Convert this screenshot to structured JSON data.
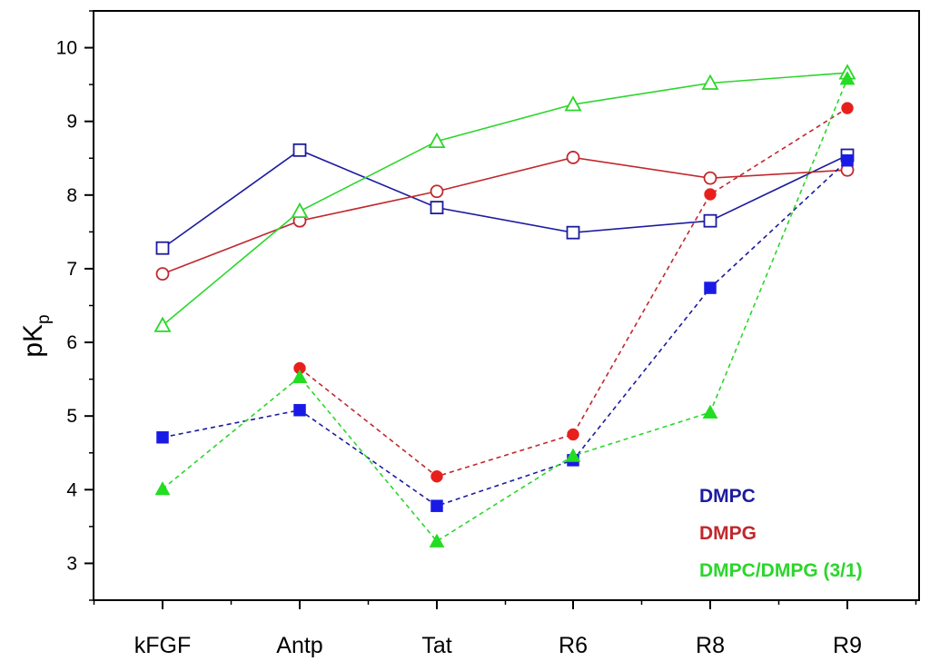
{
  "chart_data": {
    "type": "line",
    "title": "",
    "xlabel": "",
    "ylabel": "pK",
    "ylabel_subscript": "p",
    "categories": [
      "kFGF",
      "Antp",
      "Tat",
      "R6",
      "R8",
      "R9"
    ],
    "ylim": [
      2.5,
      10.5
    ],
    "yticks": [
      3,
      4,
      5,
      6,
      7,
      8,
      9,
      10
    ],
    "ytick_labels": [
      "3",
      "4",
      "5",
      "6",
      "7",
      "8",
      "9",
      "10"
    ],
    "grid": false,
    "legend_position": "bottom-right",
    "series": [
      {
        "name": "DMPC",
        "condition": "open",
        "marker": "square",
        "filled": false,
        "line_style": "solid",
        "color": "#1c1c9e",
        "values": [
          7.28,
          8.61,
          7.83,
          7.49,
          7.65,
          8.54
        ]
      },
      {
        "name": "DMPG",
        "condition": "open",
        "marker": "circle",
        "filled": false,
        "line_style": "solid",
        "color": "#c0282d",
        "values": [
          6.93,
          7.65,
          8.05,
          8.51,
          8.23,
          8.34
        ]
      },
      {
        "name": "DMPC/DMPG (3/1)",
        "condition": "open",
        "marker": "triangle",
        "filled": false,
        "line_style": "solid",
        "color": "#2bd62b",
        "values": [
          6.23,
          7.78,
          8.73,
          9.23,
          9.52,
          9.66
        ]
      },
      {
        "name": "DMPC",
        "condition": "filled",
        "marker": "square",
        "filled": true,
        "line_style": "dashed",
        "color": "#1a1ae6",
        "line_color": "#1c1c9e",
        "values": [
          4.71,
          5.08,
          3.78,
          4.4,
          6.74,
          8.47
        ]
      },
      {
        "name": "DMPG",
        "condition": "filled",
        "marker": "circle",
        "filled": true,
        "line_style": "dashed",
        "color": "#e8201c",
        "line_color": "#c0282d",
        "values": [
          null,
          5.65,
          4.18,
          4.75,
          8.01,
          9.18
        ]
      },
      {
        "name": "DMPC/DMPG (3/1)",
        "condition": "filled",
        "marker": "triangle",
        "filled": true,
        "line_style": "dashed",
        "color": "#22dd22",
        "line_color": "#2bd62b",
        "values": [
          4.01,
          5.53,
          3.3,
          4.46,
          5.05,
          9.58
        ]
      }
    ],
    "legend": [
      {
        "label": "DMPC",
        "color": "#1c1c9e"
      },
      {
        "label": "DMPG",
        "color": "#c0282d"
      },
      {
        "label": "DMPC/DMPG (3/1)",
        "color": "#2bd62b"
      }
    ]
  }
}
